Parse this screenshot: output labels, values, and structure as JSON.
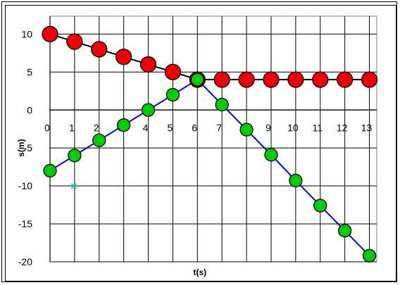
{
  "chart_data": {
    "type": "scatter",
    "title": "",
    "xlabel": "t(s)",
    "ylabel": "s(m)",
    "xlim": [
      0,
      13.3
    ],
    "ylim": [
      -20,
      10.5
    ],
    "x_ticks": [
      0,
      1,
      2,
      3,
      4,
      5,
      6,
      7,
      8,
      9,
      10,
      11,
      12,
      13
    ],
    "y_ticks": [
      10,
      5,
      0,
      -5,
      -10,
      -15,
      -20
    ],
    "grid": true,
    "legend": "none",
    "series": [
      {
        "color": "#ee0000",
        "line_color": "#000000",
        "x": [
          0,
          1,
          2,
          3,
          4,
          5,
          6,
          7,
          8,
          9,
          10,
          11,
          12,
          13
        ],
        "y": [
          10,
          9,
          8,
          7,
          6,
          5,
          4,
          4,
          4,
          4,
          4,
          4,
          4,
          4
        ]
      },
      {
        "color": "#00cc00",
        "line_color": "#0000ee",
        "x": [
          0,
          1,
          2,
          3,
          4,
          5,
          6,
          7,
          8,
          9,
          10,
          11,
          12,
          13
        ],
        "y": [
          -8,
          -6,
          -4,
          -2,
          0,
          2,
          4,
          0.7,
          -2.6,
          -5.9,
          -9.3,
          -12.6,
          -15.9,
          -19.2
        ]
      }
    ],
    "markers": [
      {
        "glyph": "×",
        "color": "#00cccc",
        "x": 1,
        "y": -10
      }
    ]
  }
}
